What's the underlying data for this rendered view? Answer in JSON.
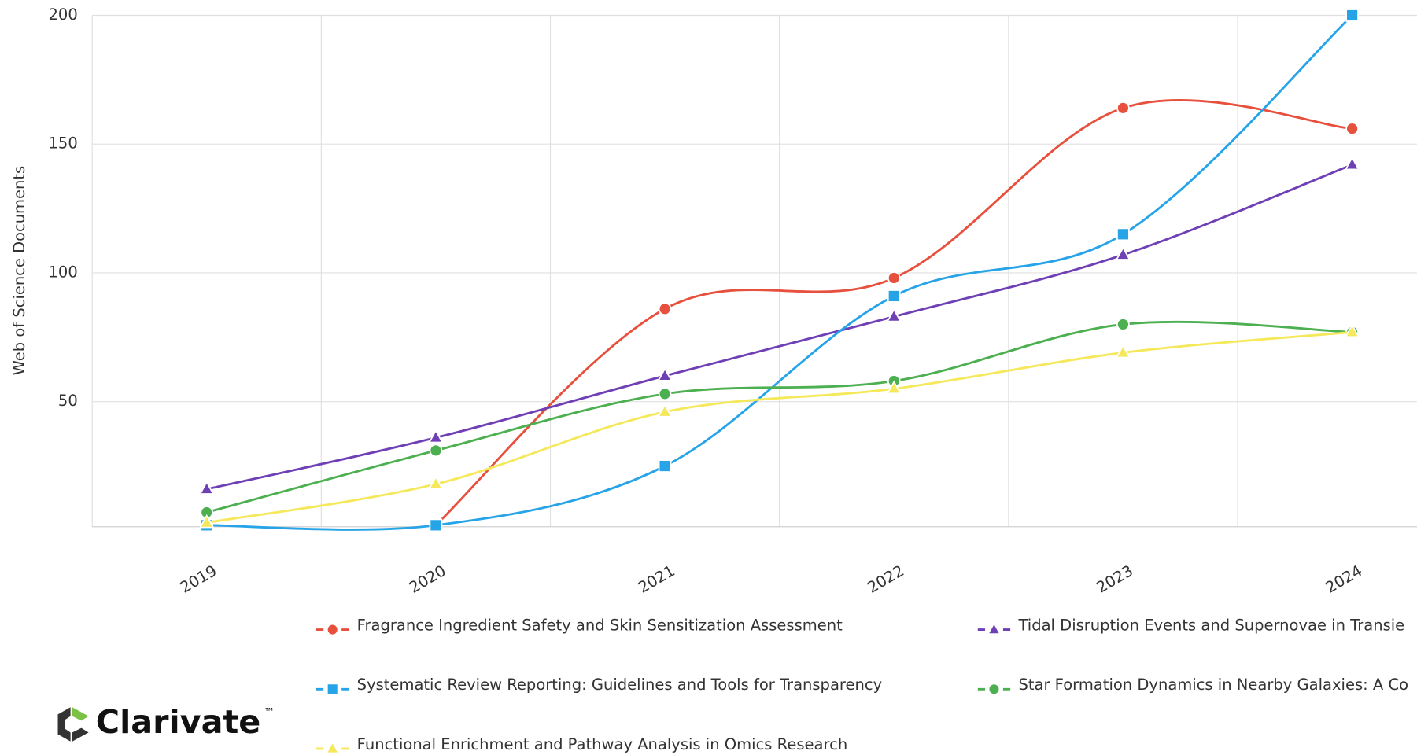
{
  "chart_data": {
    "type": "line",
    "y_label": "Web of Science Documents",
    "categories": [
      "2019",
      "2020",
      "2021",
      "2022",
      "2023",
      "2024"
    ],
    "ylim": [
      0,
      200
    ],
    "yticks": [
      50,
      100,
      150,
      200
    ],
    "grid": true,
    "smooth": true,
    "series": [
      {
        "name": "Fragrance Ingredient Safety and Skin Sensitization Assessment",
        "color": "#e8503e",
        "marker": "circle",
        "values": [
          null,
          2,
          86,
          98,
          164,
          156
        ]
      },
      {
        "name": "Tidal Disruption Events and Supernovae in Transie",
        "color": "#6f3fb5",
        "marker": "triangle",
        "values": [
          16,
          36,
          60,
          83,
          107,
          142
        ]
      },
      {
        "name": "Systematic Review Reporting: Guidelines and Tools for Transparency",
        "color": "#27a4e8",
        "marker": "square",
        "values": [
          2,
          2,
          25,
          91,
          115,
          200
        ]
      },
      {
        "name": "Star Formation Dynamics in Nearby Galaxies: A Co",
        "color": "#4caf50",
        "marker": "circle",
        "values": [
          7,
          31,
          53,
          58,
          80,
          77
        ]
      },
      {
        "name": "Functional Enrichment and Pathway Analysis in Omics Research",
        "color": "#f5e85a",
        "marker": "triangle",
        "values": [
          3,
          18,
          46,
          55,
          69,
          77
        ]
      }
    ]
  },
  "logo": "Clarivate",
  "logo_mark": "™"
}
